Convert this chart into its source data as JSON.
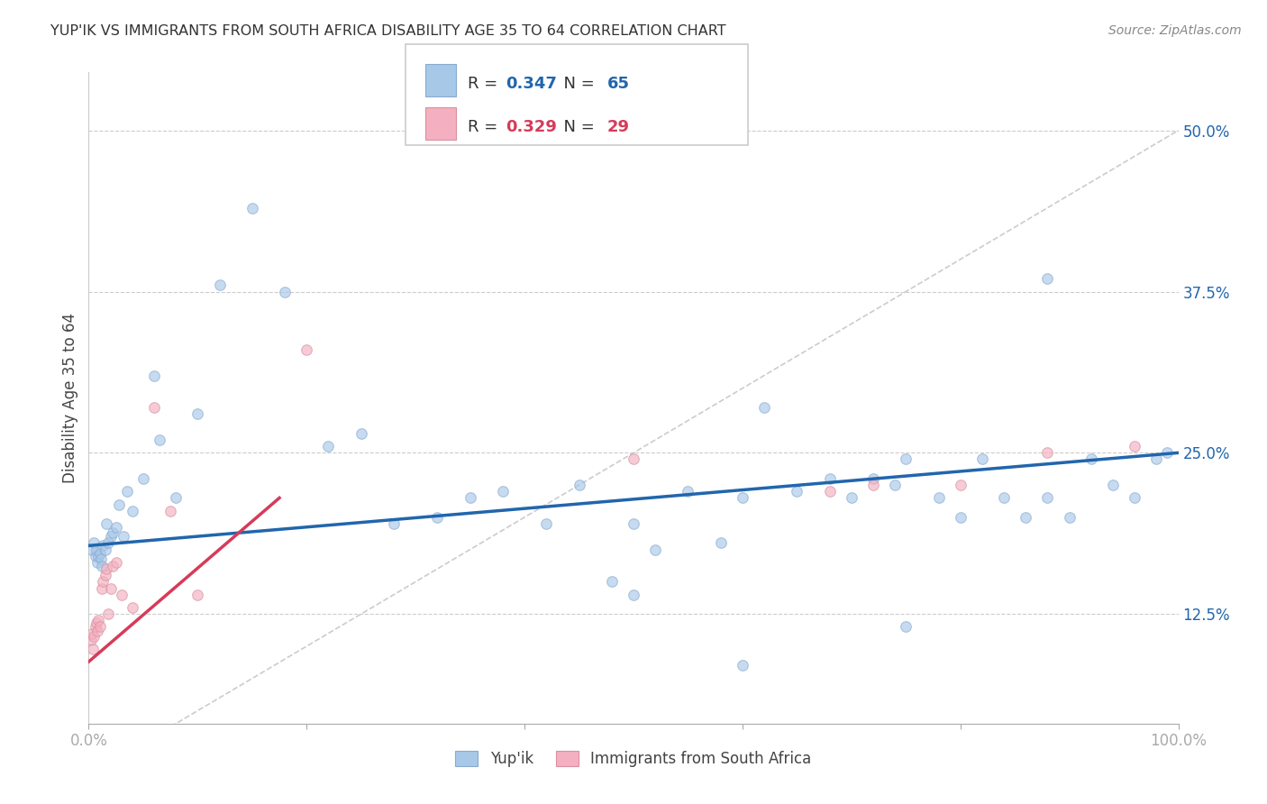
{
  "title": "YUP'IK VS IMMIGRANTS FROM SOUTH AFRICA DISABILITY AGE 35 TO 64 CORRELATION CHART",
  "source": "Source: ZipAtlas.com",
  "ylabel": "Disability Age 35 to 64",
  "ytick_labels": [
    "12.5%",
    "25.0%",
    "37.5%",
    "50.0%"
  ],
  "ytick_values": [
    0.125,
    0.25,
    0.375,
    0.5
  ],
  "xlim": [
    0.0,
    1.0
  ],
  "ylim": [
    0.04,
    0.545
  ],
  "legend1_label": "Yup'ik",
  "legend2_label": "Immigrants from South Africa",
  "R1": 0.347,
  "N1": 65,
  "R2": 0.329,
  "N2": 29,
  "color_blue": "#a8c8e8",
  "color_blue_edge": "#88aad0",
  "color_blue_line": "#2166ac",
  "color_pink": "#f4b0c0",
  "color_pink_edge": "#d890a0",
  "color_pink_line": "#d63b5a",
  "color_diag": "#cccccc",
  "yupik_x": [
    0.003,
    0.005,
    0.006,
    0.007,
    0.008,
    0.009,
    0.01,
    0.011,
    0.012,
    0.013,
    0.015,
    0.016,
    0.018,
    0.02,
    0.022,
    0.025,
    0.028,
    0.032,
    0.035,
    0.04,
    0.05,
    0.06,
    0.065,
    0.08,
    0.1,
    0.12,
    0.15,
    0.18,
    0.22,
    0.25,
    0.28,
    0.32,
    0.35,
    0.38,
    0.42,
    0.45,
    0.48,
    0.5,
    0.52,
    0.55,
    0.58,
    0.6,
    0.62,
    0.65,
    0.68,
    0.7,
    0.72,
    0.74,
    0.75,
    0.78,
    0.8,
    0.82,
    0.84,
    0.86,
    0.88,
    0.9,
    0.92,
    0.94,
    0.96,
    0.98,
    0.99,
    0.5,
    0.6,
    0.75,
    0.88
  ],
  "yupik_y": [
    0.175,
    0.18,
    0.17,
    0.175,
    0.165,
    0.17,
    0.172,
    0.168,
    0.162,
    0.178,
    0.175,
    0.195,
    0.18,
    0.185,
    0.188,
    0.192,
    0.21,
    0.185,
    0.22,
    0.205,
    0.23,
    0.31,
    0.26,
    0.215,
    0.28,
    0.38,
    0.44,
    0.375,
    0.255,
    0.265,
    0.195,
    0.2,
    0.215,
    0.22,
    0.195,
    0.225,
    0.15,
    0.195,
    0.175,
    0.22,
    0.18,
    0.215,
    0.285,
    0.22,
    0.23,
    0.215,
    0.23,
    0.225,
    0.245,
    0.215,
    0.2,
    0.245,
    0.215,
    0.2,
    0.215,
    0.2,
    0.245,
    0.225,
    0.215,
    0.245,
    0.25,
    0.14,
    0.085,
    0.115,
    0.385
  ],
  "sa_x": [
    0.002,
    0.003,
    0.004,
    0.005,
    0.006,
    0.007,
    0.008,
    0.009,
    0.01,
    0.012,
    0.013,
    0.015,
    0.016,
    0.018,
    0.02,
    0.022,
    0.025,
    0.03,
    0.04,
    0.06,
    0.075,
    0.1,
    0.2,
    0.5,
    0.68,
    0.72,
    0.8,
    0.88,
    0.96
  ],
  "sa_y": [
    0.105,
    0.11,
    0.098,
    0.108,
    0.115,
    0.118,
    0.112,
    0.12,
    0.115,
    0.145,
    0.15,
    0.155,
    0.16,
    0.125,
    0.145,
    0.162,
    0.165,
    0.14,
    0.13,
    0.285,
    0.205,
    0.14,
    0.33,
    0.245,
    0.22,
    0.225,
    0.225,
    0.25,
    0.255
  ],
  "marker_size": 70,
  "alpha": 0.65,
  "line_b_x0": 0.0,
  "line_b_x1": 1.0,
  "line_b_y0": 0.178,
  "line_b_y1": 0.25,
  "line_p_x0": 0.0,
  "line_p_x1": 0.175,
  "line_p_y0": 0.088,
  "line_p_y1": 0.215
}
